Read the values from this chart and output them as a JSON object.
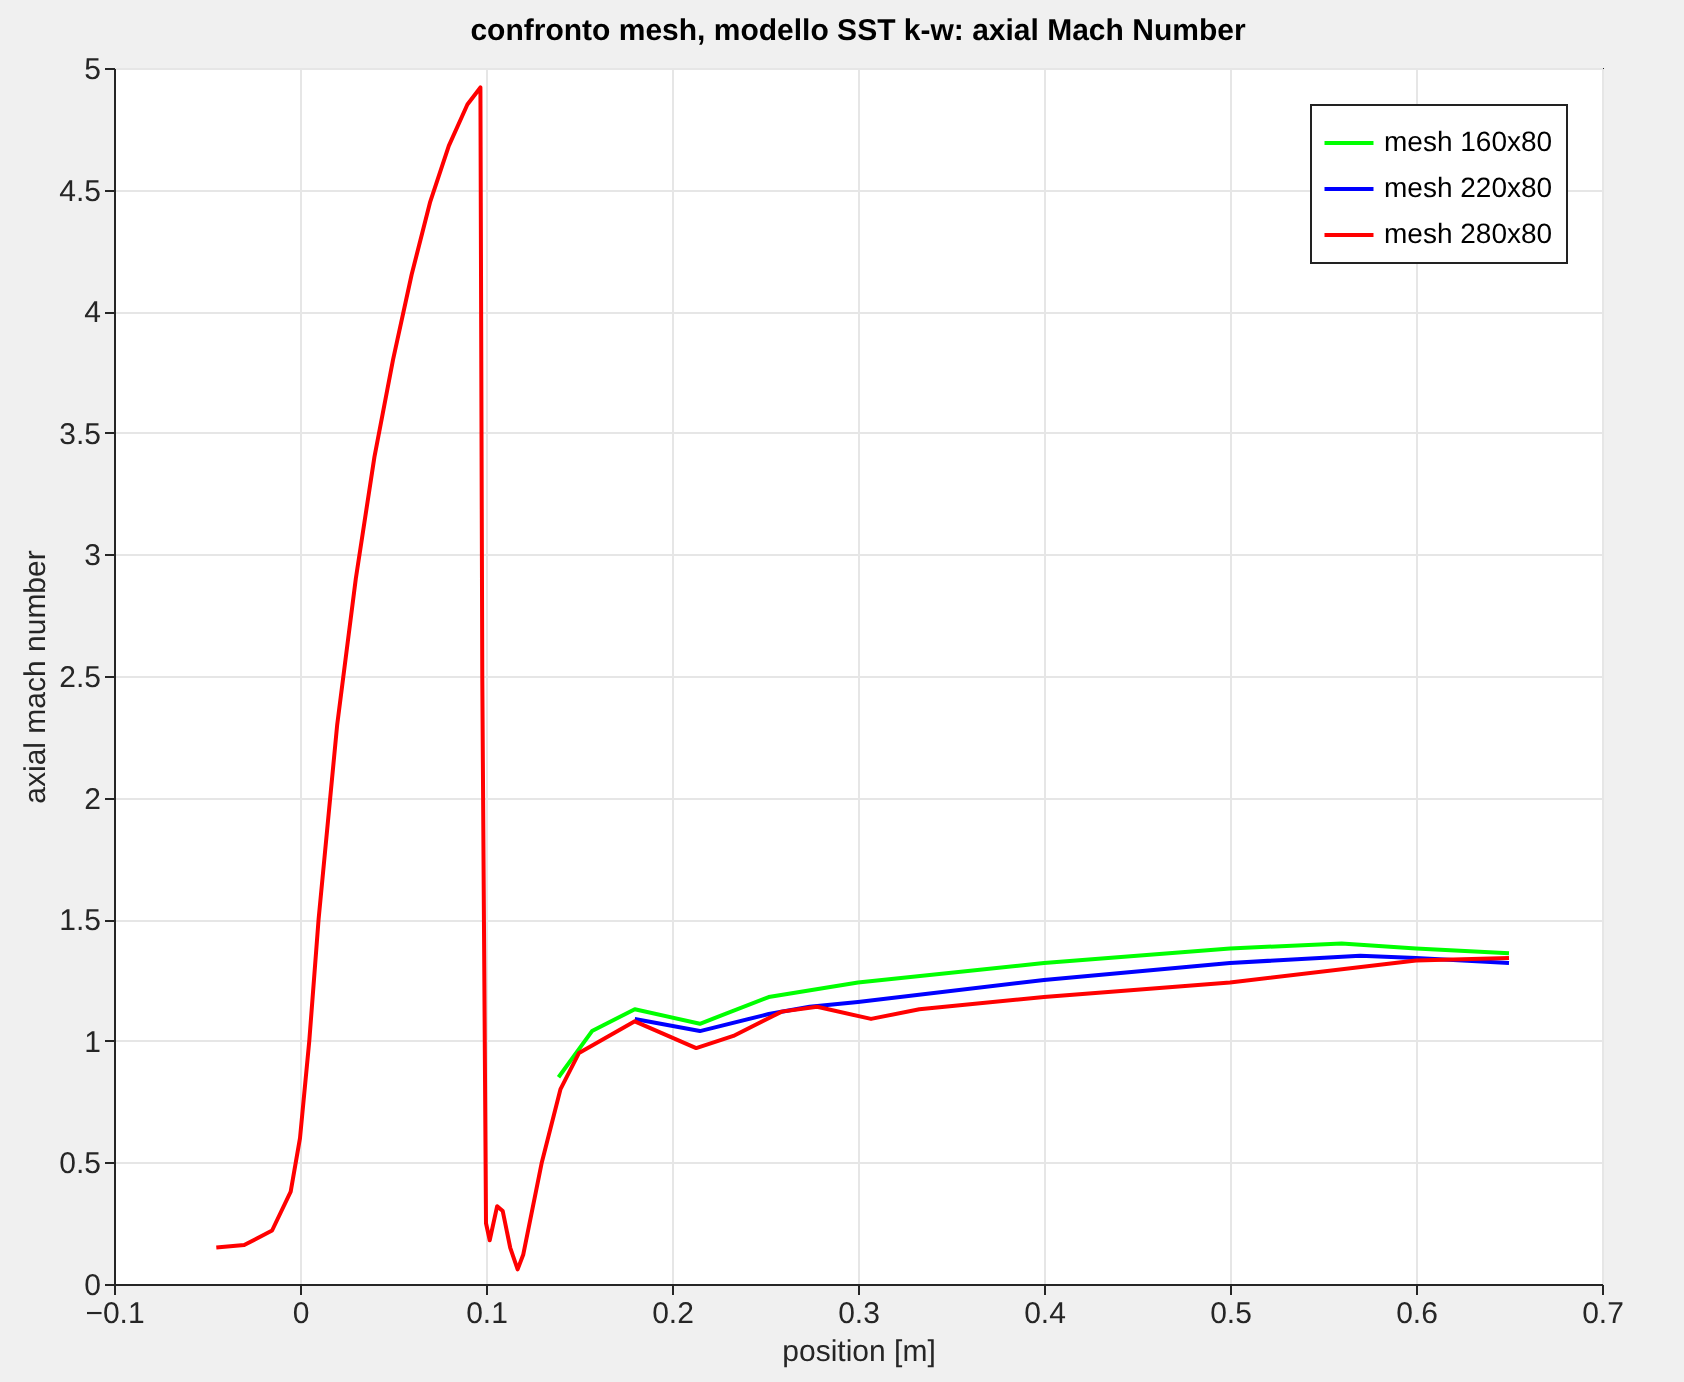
{
  "chart_data": {
    "type": "line",
    "title": "confronto mesh, modello SST k-w: axial Mach Number",
    "xlabel": "position [m]",
    "ylabel": "axial mach number",
    "xlim": [
      -0.1,
      0.7
    ],
    "xticks": [
      -0.1,
      0,
      0.1,
      0.2,
      0.3,
      0.4,
      0.5,
      0.6,
      0.7
    ],
    "ylim": [
      0,
      5
    ],
    "yticks": [
      0,
      0.5,
      1,
      1.5,
      2,
      2.5,
      3,
      3.5,
      4,
      4.5,
      5
    ],
    "grid": true,
    "legend": "top right",
    "marker": "none",
    "line_style": "solid",
    "series": [
      {
        "name": "mesh 160x80",
        "color": "#00ff00",
        "x": [
          0.139,
          0.157,
          0.18,
          0.215,
          0.252,
          0.3,
          0.4,
          0.5,
          0.56,
          0.6,
          0.65
        ],
        "values": [
          0.85,
          1.04,
          1.13,
          1.07,
          1.18,
          1.24,
          1.32,
          1.38,
          1.4,
          1.38,
          1.36
        ]
      },
      {
        "name": "mesh 220x80",
        "color": "#0000ff",
        "x": [
          0.18,
          0.215,
          0.252,
          0.274,
          0.3,
          0.4,
          0.5,
          0.57,
          0.6,
          0.65
        ],
        "values": [
          1.09,
          1.04,
          1.11,
          1.14,
          1.16,
          1.25,
          1.32,
          1.35,
          1.34,
          1.32
        ]
      },
      {
        "name": "mesh 280x80",
        "color": "#ff0000",
        "x": [
          -0.045,
          -0.03,
          -0.015,
          -0.005,
          0,
          0.005,
          0.01,
          0.02,
          0.03,
          0.04,
          0.05,
          0.06,
          0.07,
          0.08,
          0.09,
          0.097,
          0.098,
          0.1,
          0.102,
          0.106,
          0.109,
          0.113,
          0.117,
          0.12,
          0.13,
          0.14,
          0.15,
          0.18,
          0.213,
          0.233,
          0.259,
          0.278,
          0.307,
          0.333,
          0.4,
          0.5,
          0.6,
          0.65
        ],
        "values": [
          0.15,
          0.16,
          0.22,
          0.38,
          0.6,
          1.0,
          1.5,
          2.3,
          2.9,
          3.4,
          3.8,
          4.15,
          4.45,
          4.68,
          4.85,
          4.92,
          2.5,
          0.25,
          0.18,
          0.32,
          0.3,
          0.15,
          0.06,
          0.12,
          0.5,
          0.8,
          0.95,
          1.08,
          0.97,
          1.02,
          1.12,
          1.14,
          1.09,
          1.13,
          1.18,
          1.24,
          1.33,
          1.34
        ]
      }
    ]
  }
}
